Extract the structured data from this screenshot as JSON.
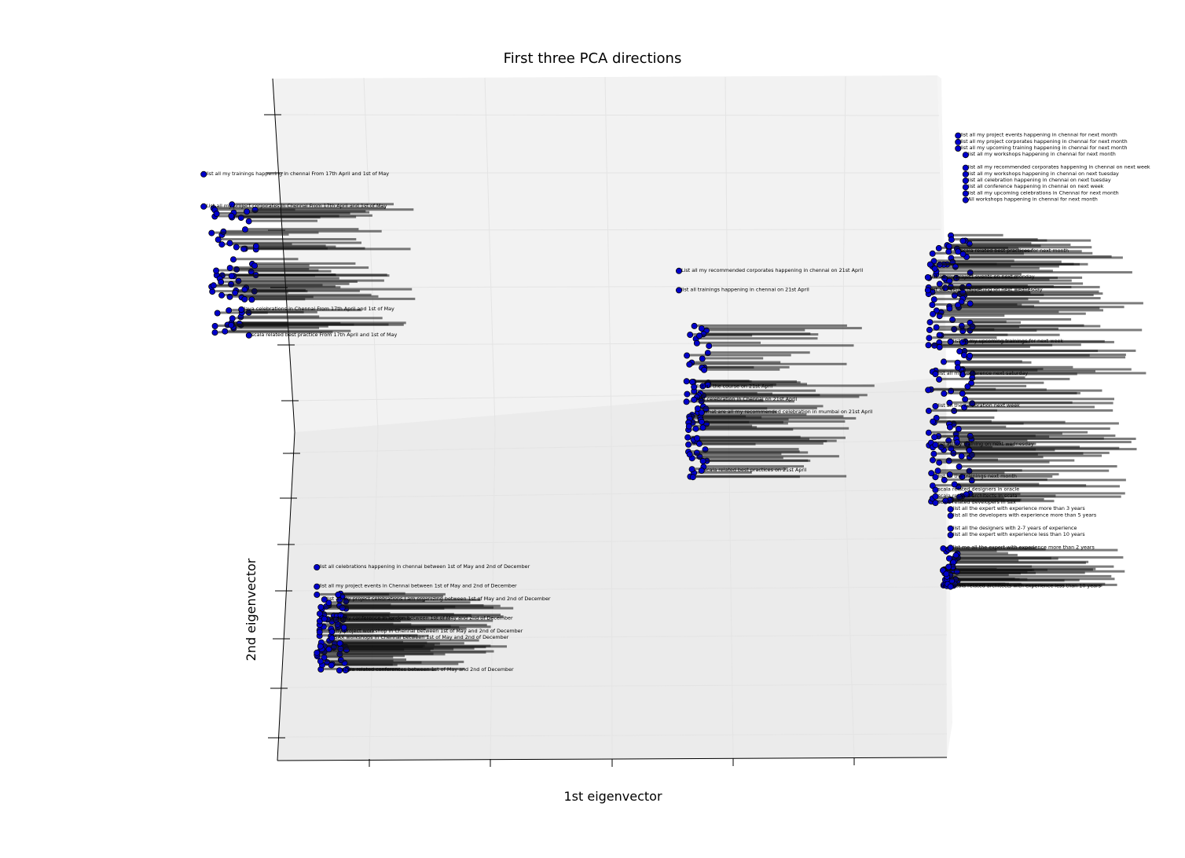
{
  "chart_data": {
    "type": "scatter",
    "projection": "3d",
    "title": "First three PCA directions",
    "xlabel": "1st eigenvector",
    "ylabel": "2nd eigenvector",
    "zlabel": "",
    "marker_color": "#0000cc",
    "marker_edge_color": "#000000",
    "grid": true,
    "points": [
      {
        "x": 0.02,
        "y": 0.91,
        "label": "list all my trainings happening in chennai From 17th April and 1st of May"
      },
      {
        "x": 0.02,
        "y": 0.86,
        "label": "List all my project corporates in Chennai From 17th April and 1st of May"
      },
      {
        "x": 0.07,
        "y": 0.7,
        "label": "Java celebrations in Chennai From 17th April and 1st of May"
      },
      {
        "x": 0.08,
        "y": 0.66,
        "label": "scala related best practice From 17th April and 1st of May"
      },
      {
        "x": 0.65,
        "y": 0.76,
        "label": "List all my recommended corporates happening in chennai on 21st April"
      },
      {
        "x": 0.65,
        "y": 0.73,
        "label": "list all trainings happening in chennai on 21st April"
      },
      {
        "x": 0.67,
        "y": 0.58,
        "label": "list all the course on 21st April"
      },
      {
        "x": 0.67,
        "y": 0.56,
        "label": "R&I celebration in Chennai on 21st April"
      },
      {
        "x": 0.68,
        "y": 0.54,
        "label": "what are all my recommended celebration in mumbai on 21st April"
      },
      {
        "x": 0.68,
        "y": 0.45,
        "label": "scala related best practices on 21st April"
      },
      {
        "x": 0.17,
        "y": 0.3,
        "label": "list all celebrations happening in chennai between 1st of May and 2nd of December"
      },
      {
        "x": 0.17,
        "y": 0.27,
        "label": "list all my project events in Chennai between 1st of May and 2nd of December"
      },
      {
        "x": 0.18,
        "y": 0.25,
        "label": "list all my project celebrations I am organizing between 1st of May and 2nd of December"
      },
      {
        "x": 0.18,
        "y": 0.22,
        "label": "list all my conference in london between 1st of May and 2nd of December"
      },
      {
        "x": 0.19,
        "y": 0.2,
        "label": "my project workshop in Chennai between 1st of May and 2nd of December"
      },
      {
        "x": 0.19,
        "y": 0.19,
        "label": "SAX workshops in Chennai between 1st of May and 2nd of December"
      },
      {
        "x": 0.2,
        "y": 0.14,
        "label": "scala related conferences between 1st of May and 2nd of December"
      },
      {
        "x": 1.02,
        "y": 0.97,
        "label": "list all my project events happening in chennai for next month"
      },
      {
        "x": 1.02,
        "y": 0.96,
        "label": "list all my project corporates happening in chennai for next month"
      },
      {
        "x": 1.02,
        "y": 0.95,
        "label": "list all my upcoming training happening in chennai for next month"
      },
      {
        "x": 1.03,
        "y": 0.94,
        "label": "list all my workshops happening in chennai for next month"
      },
      {
        "x": 1.03,
        "y": 0.92,
        "label": "list all my recommended corporates happening in chennai on next week"
      },
      {
        "x": 1.03,
        "y": 0.91,
        "label": "list all my workshops happening in chennai on next tuesday"
      },
      {
        "x": 1.03,
        "y": 0.9,
        "label": "list all celebration happening in chennai on next tuesday"
      },
      {
        "x": 1.03,
        "y": 0.89,
        "label": "list all conference happening in chennai on next week"
      },
      {
        "x": 1.03,
        "y": 0.88,
        "label": "list all my upcoming celebrations in Chennai for next month"
      },
      {
        "x": 1.03,
        "y": 0.87,
        "label": "All workshops happening in chennai for next month"
      },
      {
        "x": 1.02,
        "y": 0.79,
        "label": "scala related best practices for next month"
      },
      {
        "x": 0.98,
        "y": 0.75,
        "label": "list all my project events on next monday"
      },
      {
        "x": 0.98,
        "y": 0.73,
        "label": "list all events happening on next wednesday"
      },
      {
        "x": 1.01,
        "y": 0.65,
        "label": "list all my upcoming trainings for next week"
      },
      {
        "x": 0.99,
        "y": 0.6,
        "label": "list all my conference next saturday"
      },
      {
        "x": 0.99,
        "y": 0.55,
        "label": "list all the celebration next week"
      },
      {
        "x": 0.99,
        "y": 0.49,
        "label": "list all my training on next wednesday"
      },
      {
        "x": 0.99,
        "y": 0.44,
        "label": "list all the trainings next month"
      },
      {
        "x": 0.99,
        "y": 0.42,
        "label": "scala related designers in oracle"
      },
      {
        "x": 0.99,
        "y": 0.41,
        "label": "scala related architects in scala"
      },
      {
        "x": 0.99,
        "y": 0.4,
        "label": "scala related developers in sax"
      },
      {
        "x": 1.01,
        "y": 0.39,
        "label": "list all the expert with experience more than 3 years"
      },
      {
        "x": 1.01,
        "y": 0.38,
        "label": "list all the developers with experience more than 5 years"
      },
      {
        "x": 1.01,
        "y": 0.36,
        "label": "list all the designers with 2-7 years of experience"
      },
      {
        "x": 1.01,
        "y": 0.35,
        "label": "list all the expert with experience less than 10 years"
      },
      {
        "x": 1.01,
        "y": 0.33,
        "label": "list me all the expert with experience more than 2 years"
      },
      {
        "x": 1.01,
        "y": 0.27,
        "label": "scala related architects with experience less than 10 years"
      }
    ]
  }
}
